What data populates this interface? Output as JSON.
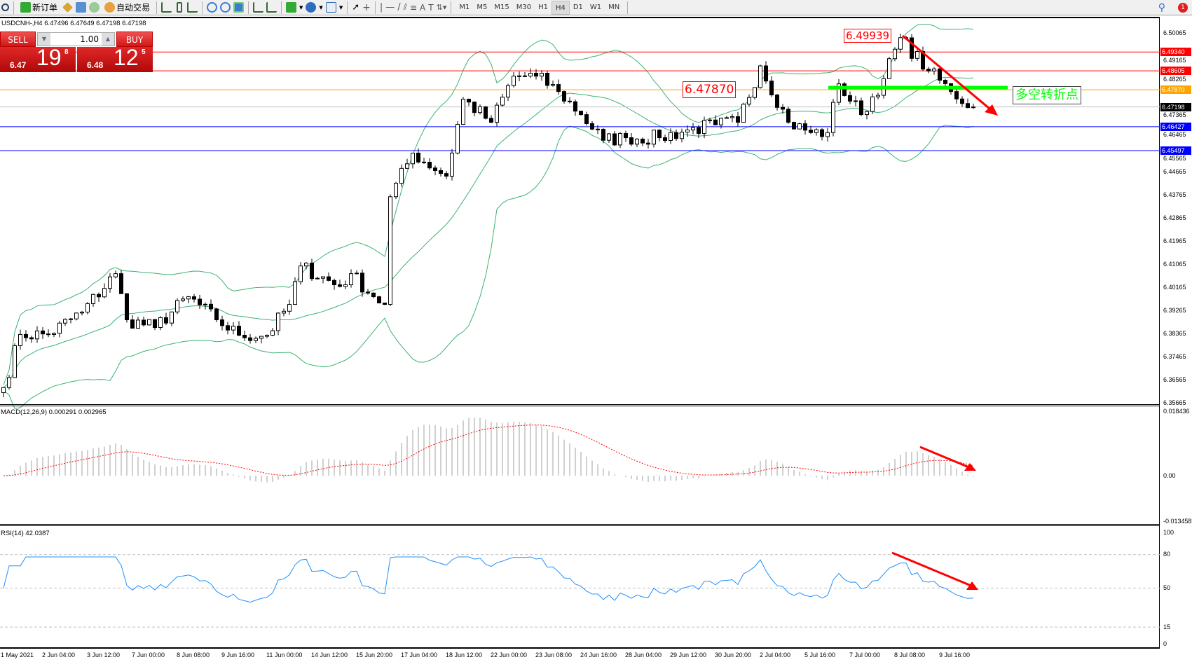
{
  "toolbar": {
    "new_order": "新订单",
    "auto_trading": "自动交易",
    "timeframes": [
      "M1",
      "M5",
      "M15",
      "M30",
      "H1",
      "H4",
      "D1",
      "W1",
      "MN"
    ],
    "active_timeframe": "H4",
    "notification_count": "1"
  },
  "symbol_info": "USDCNH-,H4  6.47496 6.47649 6.47198 6.47198",
  "trade_panel": {
    "sell_label": "SELL",
    "buy_label": "BUY",
    "lot": "1.00",
    "sell_small": "6.47",
    "sell_big": "19",
    "sell_sup": "8",
    "buy_small": "6.48",
    "buy_big": "12",
    "buy_sup": "5"
  },
  "price_axis": [
    "6.50065",
    "6.49165",
    "6.48265",
    "6.47365",
    "6.46465",
    "6.45565",
    "6.44665",
    "6.43765",
    "6.42865",
    "6.41965",
    "6.41065",
    "6.40165",
    "6.39265",
    "6.38365",
    "6.37465",
    "6.36565",
    "6.35665"
  ],
  "level_lines": [
    {
      "price": "6.49340",
      "color": "#ff0000"
    },
    {
      "price": "6.48605",
      "color": "#ff0000"
    },
    {
      "price": "6.47870",
      "color": "#ffa500"
    },
    {
      "price": "6.47198",
      "color": "#000000"
    },
    {
      "price": "6.46427",
      "color": "#0000ff"
    },
    {
      "price": "6.45497",
      "color": "#0000ff"
    }
  ],
  "annotations": {
    "high_label": "6.49939",
    "mid_label": "6.47870",
    "turning_point": "多空转折点"
  },
  "macd": {
    "label": "MACD(12,26,9) 0.000291 0.002965",
    "axis": [
      "0.018436",
      "0.00",
      "-0.013458"
    ]
  },
  "rsi": {
    "label": "RSI(14) 42.0387",
    "axis": [
      "100",
      "80",
      "50",
      "15",
      "0"
    ]
  },
  "time_axis": [
    "1 May 2021",
    "2 Jun 04:00",
    "3 Jun 12:00",
    "7 Jun 00:00",
    "8 Jun 08:00",
    "9 Jun 16:00",
    "11 Jun 00:00",
    "14 Jun 12:00",
    "15 Jun 20:00",
    "17 Jun 04:00",
    "18 Jun 12:00",
    "22 Jun 00:00",
    "23 Jun 08:00",
    "24 Jun 16:00",
    "28 Jun 04:00",
    "29 Jun 12:00",
    "30 Jun 20:00",
    "2 Jul 04:00",
    "5 Jul 16:00",
    "7 Jul 00:00",
    "8 Jul 08:00",
    "9 Jul 16:00"
  ],
  "chart_data": {
    "type": "candlestick",
    "symbol": "USDCNH",
    "timeframe": "H4",
    "ylim": [
      6.35665,
      6.50065
    ],
    "close_keypoints_bar_price": [
      [
        0,
        6.3626
      ],
      [
        3,
        6.3833
      ],
      [
        8,
        6.3833
      ],
      [
        14,
        6.392
      ],
      [
        20,
        6.407
      ],
      [
        22,
        6.389
      ],
      [
        27,
        6.386
      ],
      [
        33,
        6.398
      ],
      [
        38,
        6.389
      ],
      [
        42,
        6.383
      ],
      [
        47,
        6.383
      ],
      [
        51,
        6.395
      ],
      [
        53,
        6.41
      ],
      [
        60,
        6.402
      ],
      [
        62,
        6.407
      ],
      [
        66,
        6.398
      ],
      [
        68,
        6.395
      ],
      [
        69,
        6.437
      ],
      [
        73,
        6.454
      ],
      [
        79,
        6.445
      ],
      [
        82,
        6.475
      ],
      [
        87,
        6.466
      ],
      [
        91,
        6.484
      ],
      [
        95,
        6.484
      ],
      [
        99,
        6.478
      ],
      [
        103,
        6.469
      ],
      [
        107,
        6.459
      ],
      [
        111,
        6.46
      ],
      [
        117,
        6.46
      ],
      [
        122,
        6.463
      ],
      [
        127,
        6.465
      ],
      [
        131,
        6.466
      ],
      [
        135,
        6.488
      ],
      [
        140,
        6.466
      ],
      [
        144,
        6.462
      ],
      [
        147,
        6.462
      ],
      [
        149,
        6.481
      ],
      [
        153,
        6.469
      ],
      [
        157,
        6.483
      ],
      [
        160,
        6.499
      ],
      [
        165,
        6.486
      ],
      [
        169,
        6.478
      ],
      [
        173,
        6.47198
      ]
    ],
    "indicators": [
      "Bollinger Bands(20,2)",
      "MACD(12,26,9)",
      "RSI(14)"
    ],
    "colors": {
      "bands": "#3cb371",
      "macd_hist": "#c0c0c0",
      "macd_signal": "#ff0000",
      "rsi": "#1e90ff",
      "arrow": "#ff0000",
      "turn_line": "#00ff00"
    }
  }
}
